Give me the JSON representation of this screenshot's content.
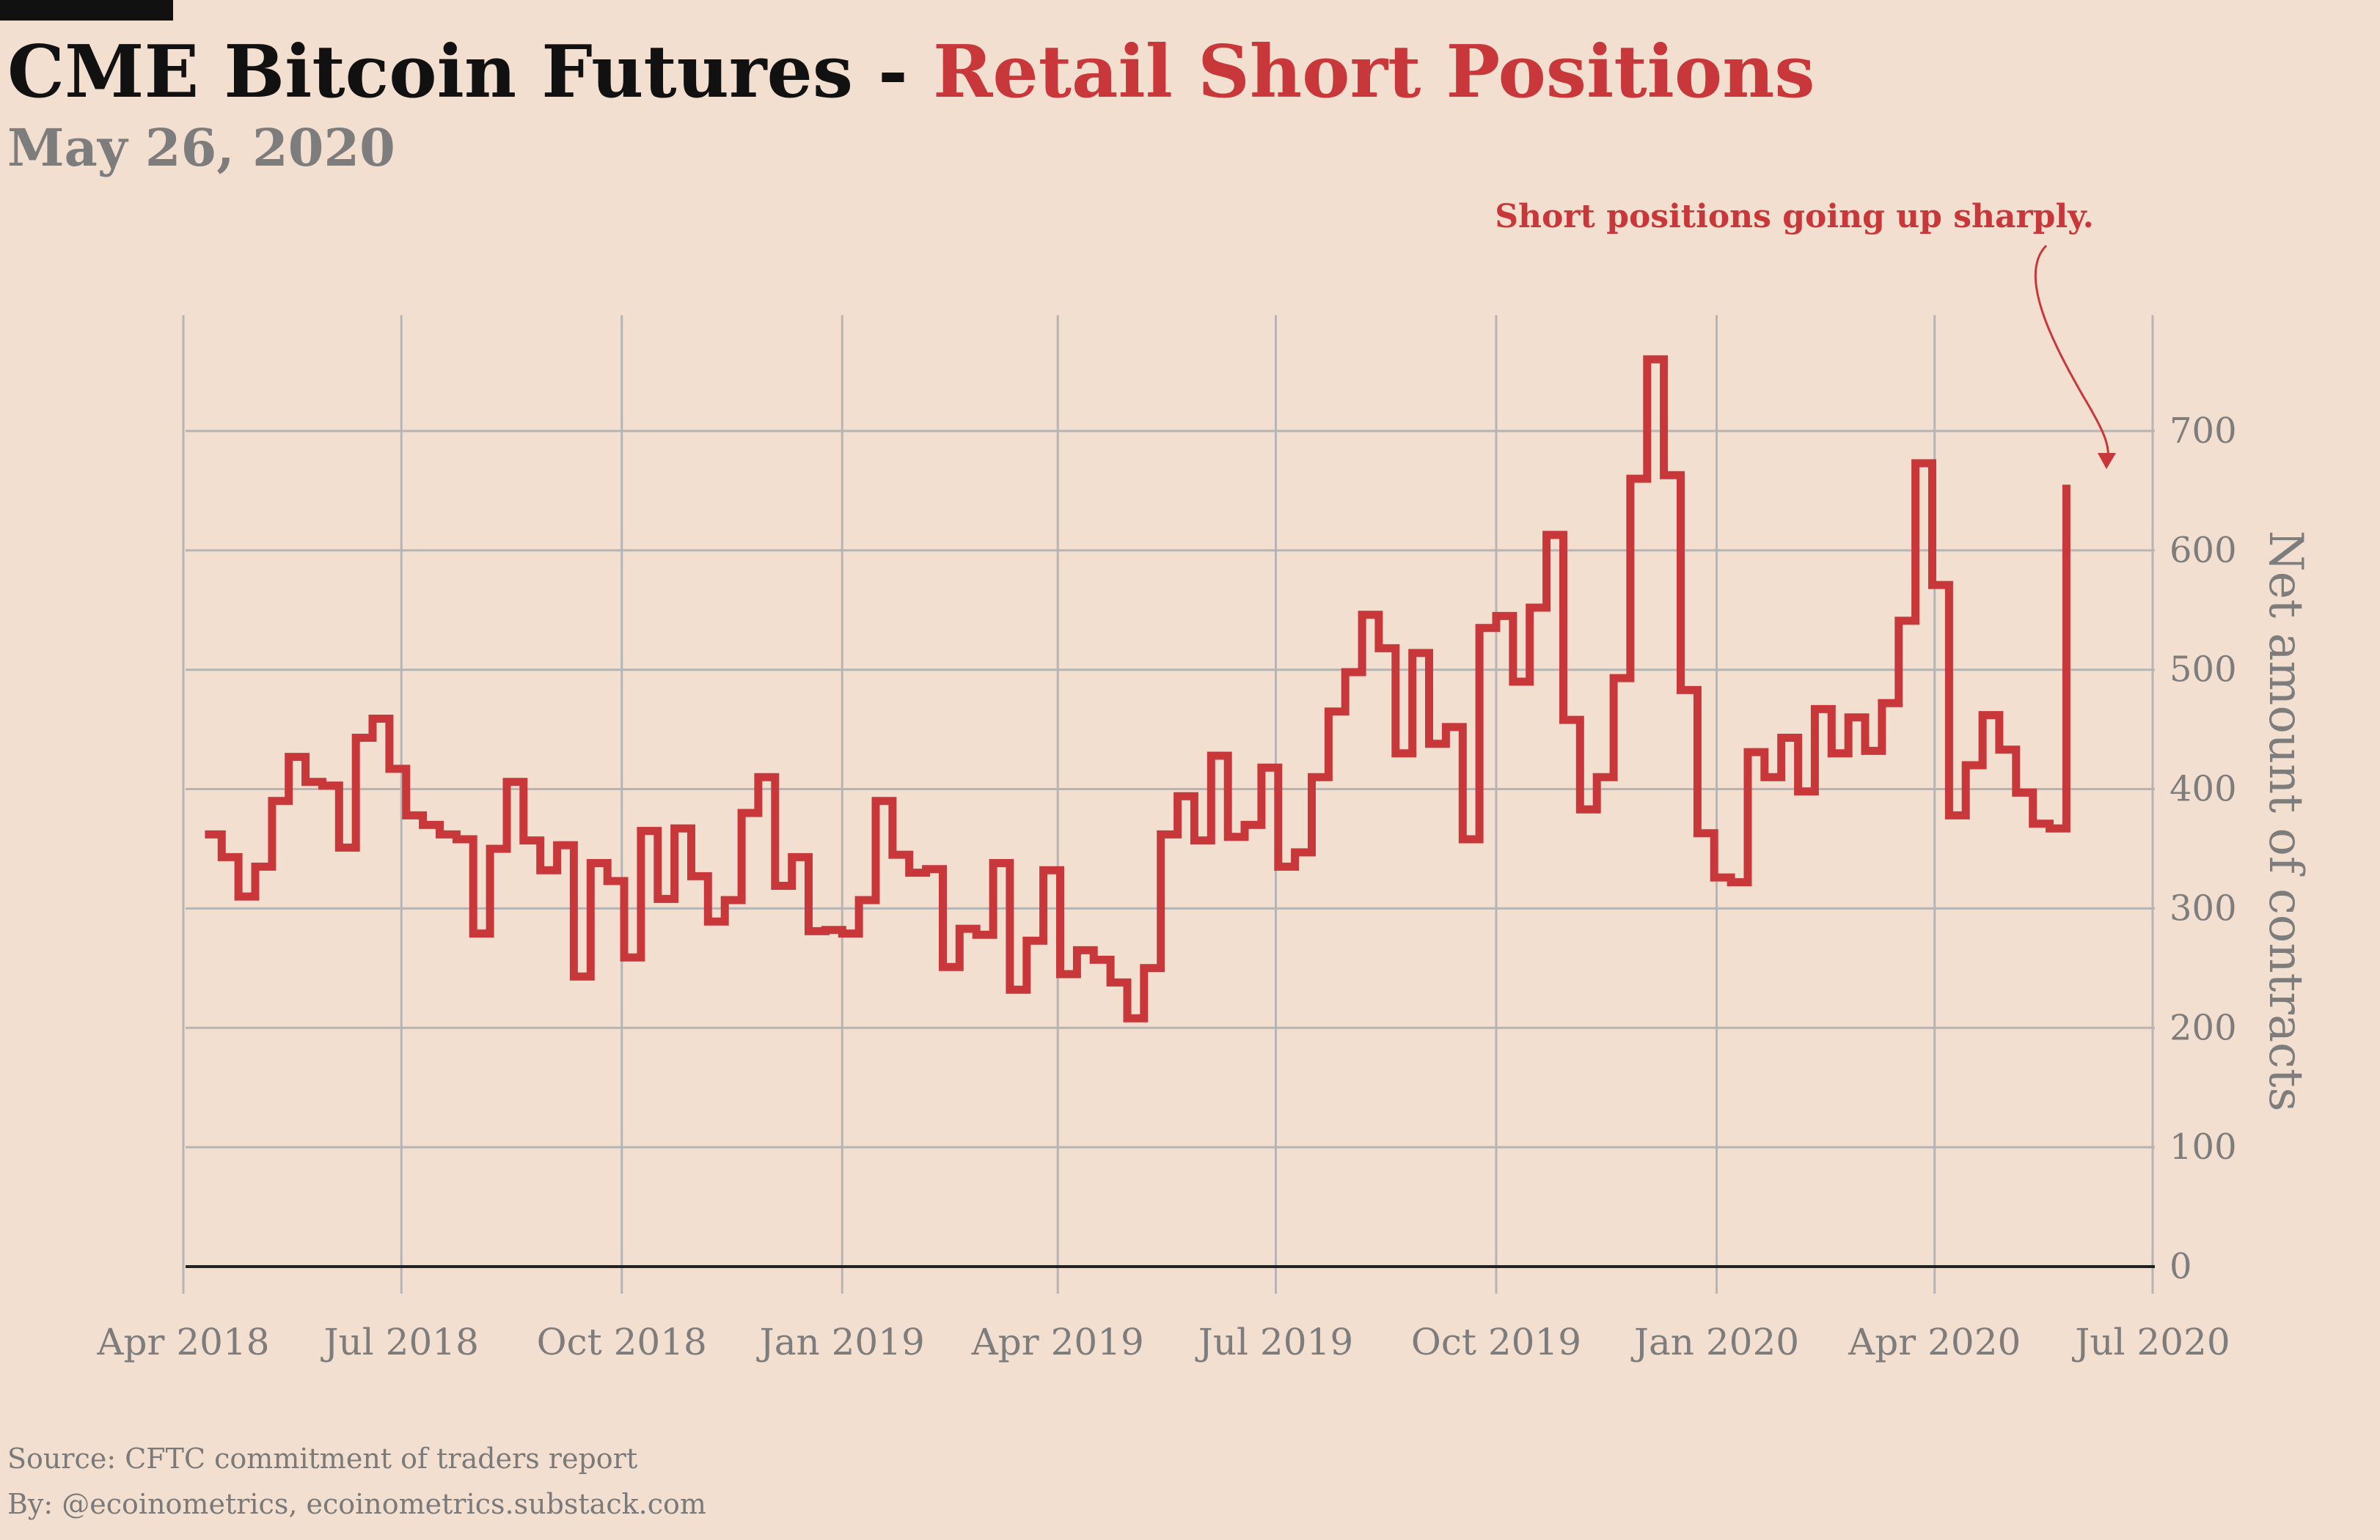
{
  "header": {
    "title_main": "CME Bitcoin Futures - ",
    "title_accent": "Retail Short Positions",
    "date": "May 26, 2020"
  },
  "footer": {
    "source": "Source: CFTC commitment of traders report",
    "credit": "By: @ecoinometrics, ecoinometrics.substack.com"
  },
  "colors": {
    "background": "#f3dfcf",
    "series": "#c8373a",
    "grid": "#b5b5b5",
    "axis_text": "#7d7d7d",
    "baseline": "#222222"
  },
  "chart_data": {
    "type": "line",
    "style": "step",
    "title": "CME Bitcoin Futures - Retail Short Positions",
    "subtitle": "May 26, 2020",
    "xlabel": "",
    "ylabel": "Net amount of contracts",
    "ylim": [
      0,
      800
    ],
    "yaxis_position": "right",
    "grid": true,
    "y_ticks": [
      0,
      100,
      200,
      300,
      400,
      500,
      600,
      700
    ],
    "x_ticks": [
      {
        "date": "2018-04-01",
        "label": "Apr 2018"
      },
      {
        "date": "2018-07-01",
        "label": "Jul 2018"
      },
      {
        "date": "2018-10-01",
        "label": "Oct 2018"
      },
      {
        "date": "2019-01-01",
        "label": "Jan 2019"
      },
      {
        "date": "2019-04-01",
        "label": "Apr 2019"
      },
      {
        "date": "2019-07-01",
        "label": "Jul 2019"
      },
      {
        "date": "2019-10-01",
        "label": "Oct 2019"
      },
      {
        "date": "2020-01-01",
        "label": "Jan 2020"
      },
      {
        "date": "2020-04-01",
        "label": "Apr 2020"
      },
      {
        "date": "2020-07-01",
        "label": "Jul 2020"
      }
    ],
    "annotation": {
      "text": "Short positions going up sharply.",
      "target_date": "2020-05-26",
      "target_value": 660
    },
    "series": [
      {
        "points": [
          [
            "2018-04-10",
            362
          ],
          [
            "2018-04-17",
            343
          ],
          [
            "2018-04-24",
            310
          ],
          [
            "2018-05-01",
            335
          ],
          [
            "2018-05-08",
            390
          ],
          [
            "2018-05-15",
            427
          ],
          [
            "2018-05-22",
            406
          ],
          [
            "2018-05-29",
            403
          ],
          [
            "2018-06-05",
            351
          ],
          [
            "2018-06-12",
            443
          ],
          [
            "2018-06-19",
            459
          ],
          [
            "2018-06-26",
            417
          ],
          [
            "2018-07-03",
            378
          ],
          [
            "2018-07-10",
            370
          ],
          [
            "2018-07-17",
            362
          ],
          [
            "2018-07-24",
            358
          ],
          [
            "2018-07-31",
            279
          ],
          [
            "2018-08-07",
            350
          ],
          [
            "2018-08-14",
            406
          ],
          [
            "2018-08-21",
            357
          ],
          [
            "2018-08-28",
            332
          ],
          [
            "2018-09-04",
            353
          ],
          [
            "2018-09-11",
            243
          ],
          [
            "2018-09-18",
            338
          ],
          [
            "2018-09-25",
            323
          ],
          [
            "2018-10-02",
            259
          ],
          [
            "2018-10-09",
            365
          ],
          [
            "2018-10-16",
            308
          ],
          [
            "2018-10-23",
            367
          ],
          [
            "2018-10-30",
            327
          ],
          [
            "2018-11-06",
            289
          ],
          [
            "2018-11-13",
            307
          ],
          [
            "2018-11-20",
            380
          ],
          [
            "2018-11-27",
            410
          ],
          [
            "2018-12-04",
            319
          ],
          [
            "2018-12-11",
            343
          ],
          [
            "2018-12-18",
            281
          ],
          [
            "2018-12-25",
            282
          ],
          [
            "2019-01-01",
            279
          ],
          [
            "2019-01-08",
            307
          ],
          [
            "2019-01-15",
            390
          ],
          [
            "2019-01-22",
            345
          ],
          [
            "2019-01-29",
            330
          ],
          [
            "2019-02-05",
            333
          ],
          [
            "2019-02-12",
            251
          ],
          [
            "2019-02-19",
            283
          ],
          [
            "2019-02-26",
            278
          ],
          [
            "2019-03-05",
            338
          ],
          [
            "2019-03-12",
            232
          ],
          [
            "2019-03-19",
            273
          ],
          [
            "2019-03-26",
            332
          ],
          [
            "2019-04-02",
            245
          ],
          [
            "2019-04-09",
            265
          ],
          [
            "2019-04-16",
            257
          ],
          [
            "2019-04-23",
            238
          ],
          [
            "2019-04-30",
            208
          ],
          [
            "2019-05-07",
            250
          ],
          [
            "2019-05-14",
            362
          ],
          [
            "2019-05-21",
            394
          ],
          [
            "2019-05-28",
            357
          ],
          [
            "2019-06-04",
            428
          ],
          [
            "2019-06-11",
            360
          ],
          [
            "2019-06-18",
            370
          ],
          [
            "2019-06-25",
            418
          ],
          [
            "2019-07-02",
            335
          ],
          [
            "2019-07-09",
            347
          ],
          [
            "2019-07-16",
            410
          ],
          [
            "2019-07-23",
            465
          ],
          [
            "2019-07-30",
            498
          ],
          [
            "2019-08-06",
            546
          ],
          [
            "2019-08-13",
            518
          ],
          [
            "2019-08-20",
            430
          ],
          [
            "2019-08-27",
            514
          ],
          [
            "2019-09-03",
            438
          ],
          [
            "2019-09-10",
            452
          ],
          [
            "2019-09-17",
            358
          ],
          [
            "2019-09-24",
            535
          ],
          [
            "2019-10-01",
            545
          ],
          [
            "2019-10-08",
            490
          ],
          [
            "2019-10-15",
            552
          ],
          [
            "2019-10-22",
            613
          ],
          [
            "2019-10-29",
            458
          ],
          [
            "2019-11-05",
            383
          ],
          [
            "2019-11-12",
            410
          ],
          [
            "2019-11-19",
            493
          ],
          [
            "2019-11-26",
            660
          ],
          [
            "2019-12-03",
            760
          ],
          [
            "2019-12-10",
            663
          ],
          [
            "2019-12-17",
            483
          ],
          [
            "2019-12-24",
            363
          ],
          [
            "2019-12-31",
            326
          ],
          [
            "2020-01-07",
            322
          ],
          [
            "2020-01-14",
            431
          ],
          [
            "2020-01-21",
            410
          ],
          [
            "2020-01-28",
            443
          ],
          [
            "2020-02-04",
            398
          ],
          [
            "2020-02-11",
            467
          ],
          [
            "2020-02-18",
            430
          ],
          [
            "2020-02-25",
            460
          ],
          [
            "2020-03-03",
            432
          ],
          [
            "2020-03-10",
            472
          ],
          [
            "2020-03-17",
            541
          ],
          [
            "2020-03-24",
            673
          ],
          [
            "2020-03-31",
            571
          ],
          [
            "2020-04-07",
            378
          ],
          [
            "2020-04-14",
            420
          ],
          [
            "2020-04-21",
            462
          ],
          [
            "2020-04-28",
            433
          ],
          [
            "2020-05-05",
            397
          ],
          [
            "2020-05-12",
            371
          ],
          [
            "2020-05-19",
            367
          ],
          [
            "2020-05-26",
            655
          ]
        ]
      }
    ]
  }
}
